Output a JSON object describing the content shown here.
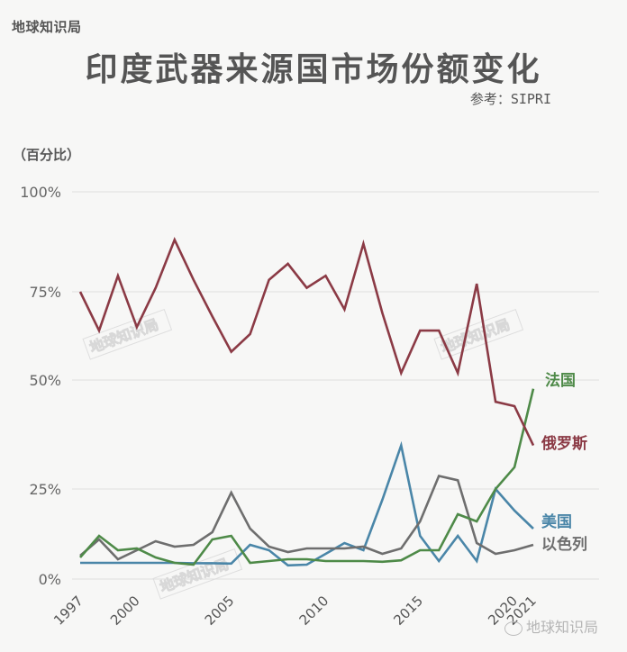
{
  "brand": "地球知识局",
  "title": "印度武器来源国市场份额变化",
  "source": "参考：SIPRI",
  "y_unit": "（百分比）",
  "watermark": "地球知识局",
  "logo_text": "地球知识局",
  "colors": {
    "russia": "#8b3a45",
    "france": "#4e8a48",
    "usa": "#4a86a8",
    "israel": "#6e6e6e",
    "grid": "#e4e4e4",
    "background": "#f7f7f6"
  },
  "chart_data": {
    "type": "line",
    "title": "印度武器来源国市场份额变化",
    "xlabel": "",
    "ylabel": "（百分比）",
    "ylim": [
      0,
      100
    ],
    "yticks": [
      "0%",
      "25%",
      "50%",
      "75%",
      "100%"
    ],
    "xticks": [
      "1997",
      "2000",
      "2005",
      "2010",
      "2015",
      "2020",
      "2021"
    ],
    "grid": true,
    "legend_position": "right, inline labels at line ends",
    "x": [
      1997,
      1998,
      1999,
      2000,
      2001,
      2002,
      2003,
      2004,
      2005,
      2006,
      2007,
      2008,
      2009,
      2010,
      2011,
      2012,
      2013,
      2014,
      2015,
      2016,
      2017,
      2018,
      2019,
      2020,
      2021
    ],
    "series": [
      {
        "name": "俄罗斯",
        "key": "russia",
        "values": [
          75,
          64,
          79,
          65,
          76,
          88,
          78,
          68,
          58,
          63,
          78,
          82,
          76,
          79,
          70,
          87,
          69,
          52,
          64,
          64,
          52,
          77,
          45,
          44,
          35
        ]
      },
      {
        "name": "法国",
        "key": "france",
        "values": [
          6,
          12,
          8,
          8.5,
          6,
          4.5,
          4,
          11,
          12,
          4.5,
          5,
          5.5,
          5.5,
          5,
          5,
          5,
          4.8,
          5.2,
          8,
          8,
          18,
          16,
          25,
          30,
          48
        ]
      },
      {
        "name": "美国",
        "key": "usa",
        "values": [
          4.5,
          4.5,
          4.5,
          4.5,
          4.5,
          4.5,
          4.4,
          4.4,
          4.3,
          9.5,
          8,
          3.8,
          4,
          7,
          10,
          8,
          22,
          35,
          12,
          5,
          12,
          5,
          25,
          19,
          14
        ]
      },
      {
        "name": "以色列",
        "key": "israel",
        "values": [
          6.5,
          11,
          5.5,
          8,
          10.5,
          9,
          9.5,
          13,
          24,
          14,
          9,
          7.5,
          8.5,
          8.5,
          8.5,
          9,
          7,
          8.5,
          16,
          28,
          27,
          10,
          7,
          8,
          9.5
        ]
      }
    ],
    "legend": [
      "法国",
      "俄罗斯",
      "美国",
      "以色列"
    ]
  }
}
